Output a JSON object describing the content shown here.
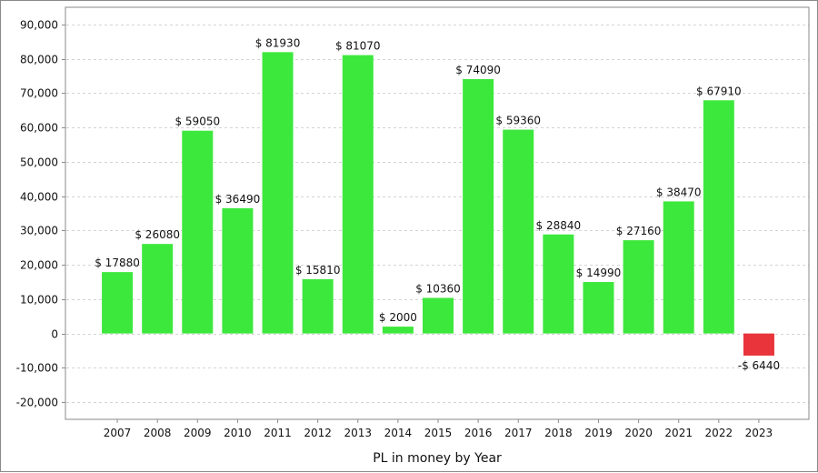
{
  "chart_data": {
    "type": "bar",
    "categories": [
      "2007",
      "2008",
      "2009",
      "2010",
      "2011",
      "2012",
      "2013",
      "2014",
      "2015",
      "2016",
      "2017",
      "2018",
      "2019",
      "2020",
      "2021",
      "2022",
      "2023"
    ],
    "values": [
      17880,
      26080,
      59050,
      36490,
      81930,
      15810,
      81070,
      2000,
      10360,
      74090,
      59360,
      28840,
      14990,
      27160,
      38470,
      67910,
      -6440
    ],
    "data_labels": [
      "$ 17880",
      "$ 26080",
      "$ 59050",
      "$ 36490",
      "$ 81930",
      "$ 15810",
      "$ 81070",
      "$ 2000",
      "$ 10360",
      "$ 74090",
      "$ 59360",
      "$ 28840",
      "$ 14990",
      "$ 27160",
      "$ 38470",
      "$ 67910",
      "-$ 6440"
    ],
    "ylim": [
      -25000,
      95000
    ],
    "y_ticks": [
      -20000,
      -10000,
      0,
      10000,
      20000,
      30000,
      40000,
      50000,
      60000,
      70000,
      80000,
      90000
    ],
    "y_tick_labels": [
      "-20,000",
      "-10,000",
      "0",
      "10,000",
      "20,000",
      "30,000",
      "40,000",
      "50,000",
      "60,000",
      "70,000",
      "80,000",
      "90,000"
    ],
    "xlabel": "PL in money by Year",
    "ylabel": "",
    "title": "",
    "grid": true,
    "colors": {
      "positive": "#3de83d",
      "negative": "#e8343a",
      "grid": "#d4d4d4",
      "axis": "#8a8a8a"
    }
  }
}
